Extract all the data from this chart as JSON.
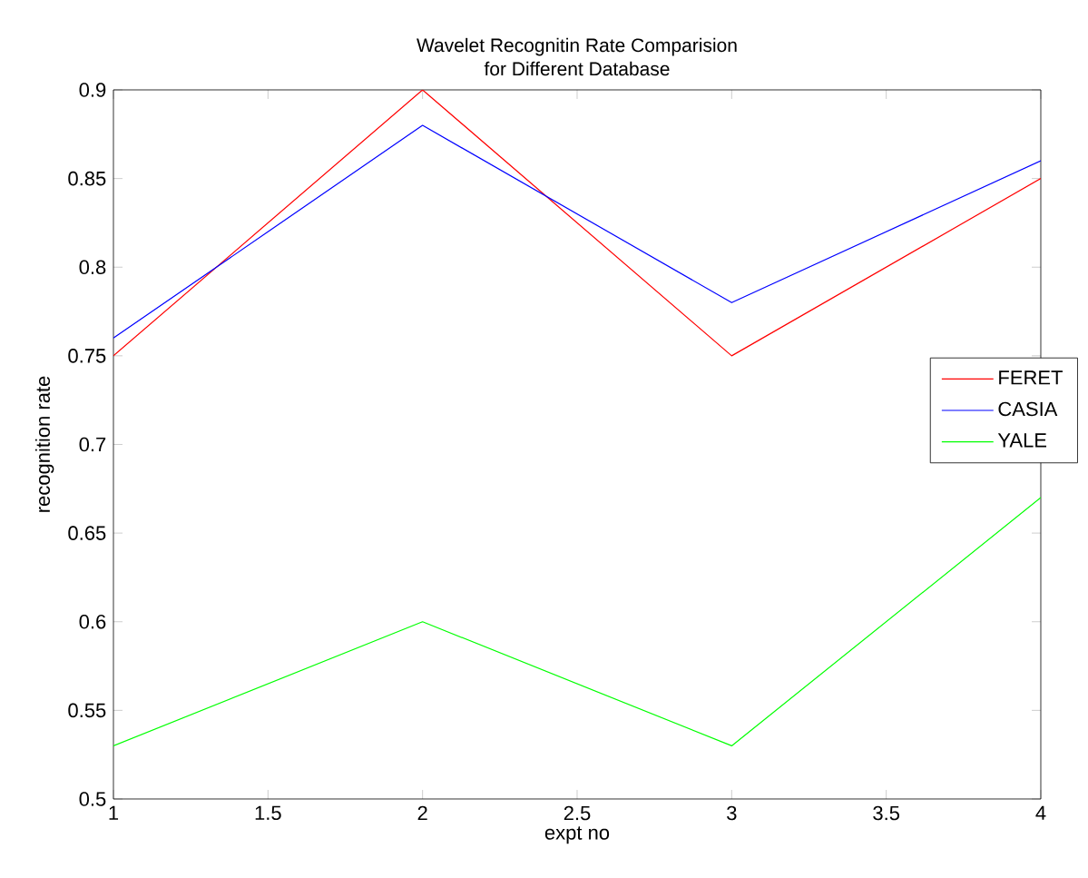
{
  "chart_data": {
    "type": "line",
    "title": "Wavelet Recognitin Rate Comparision\nfor Different Database",
    "xlabel": "expt no",
    "ylabel": "recognition rate",
    "x": [
      1,
      2,
      3,
      4
    ],
    "series": [
      {
        "name": "FERET",
        "color": "#ff0000",
        "values": [
          0.75,
          0.9,
          0.75,
          0.85
        ]
      },
      {
        "name": "CASIA",
        "color": "#0000ff",
        "values": [
          0.76,
          0.88,
          0.78,
          0.86
        ]
      },
      {
        "name": "YALE",
        "color": "#00ff00",
        "values": [
          0.53,
          0.6,
          0.53,
          0.67
        ]
      }
    ],
    "xlim": [
      1,
      4
    ],
    "ylim": [
      0.5,
      0.9
    ],
    "xticks": [
      1,
      1.5,
      2,
      2.5,
      3,
      3.5,
      4
    ],
    "yticks": [
      0.5,
      0.55,
      0.6,
      0.65,
      0.7,
      0.75,
      0.8,
      0.85,
      0.9
    ],
    "legend": "right",
    "grid": false,
    "marker": "none",
    "line_style": "solid"
  }
}
